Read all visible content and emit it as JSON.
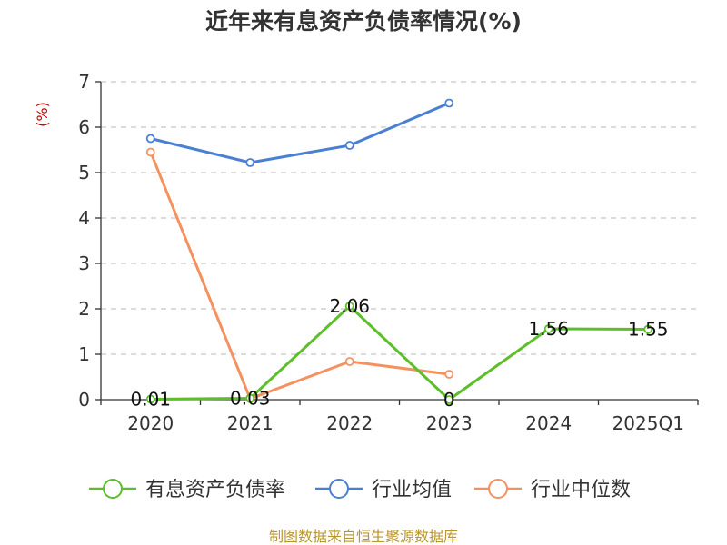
{
  "chart_data": {
    "type": "line",
    "title": "近年来有息资产负债率情况(%)",
    "ylabel": "(%)",
    "ylim": [
      0,
      7
    ],
    "yticks": [
      0,
      1,
      2,
      3,
      4,
      5,
      6,
      7
    ],
    "categories": [
      "2020",
      "2021",
      "2022",
      "2023",
      "2024",
      "2025Q1"
    ],
    "grid": true,
    "legend_position": "bottom",
    "series": [
      {
        "name": "有息资产负债率",
        "color": "#5cbf2a",
        "values": [
          0.01,
          0.03,
          2.06,
          0,
          1.56,
          1.55
        ],
        "labels": [
          "0.01",
          "0.03",
          "2.06",
          "0",
          "1.56",
          "1.55"
        ]
      },
      {
        "name": "行业均值",
        "color": "#4a7fd6",
        "values": [
          5.75,
          5.22,
          5.6,
          6.53,
          null,
          null
        ]
      },
      {
        "name": "行业中位数",
        "color": "#f5915e",
        "values": [
          5.45,
          0.02,
          0.84,
          0.56,
          null,
          null
        ]
      }
    ]
  },
  "source": "制图数据来自恒生聚源数据库"
}
